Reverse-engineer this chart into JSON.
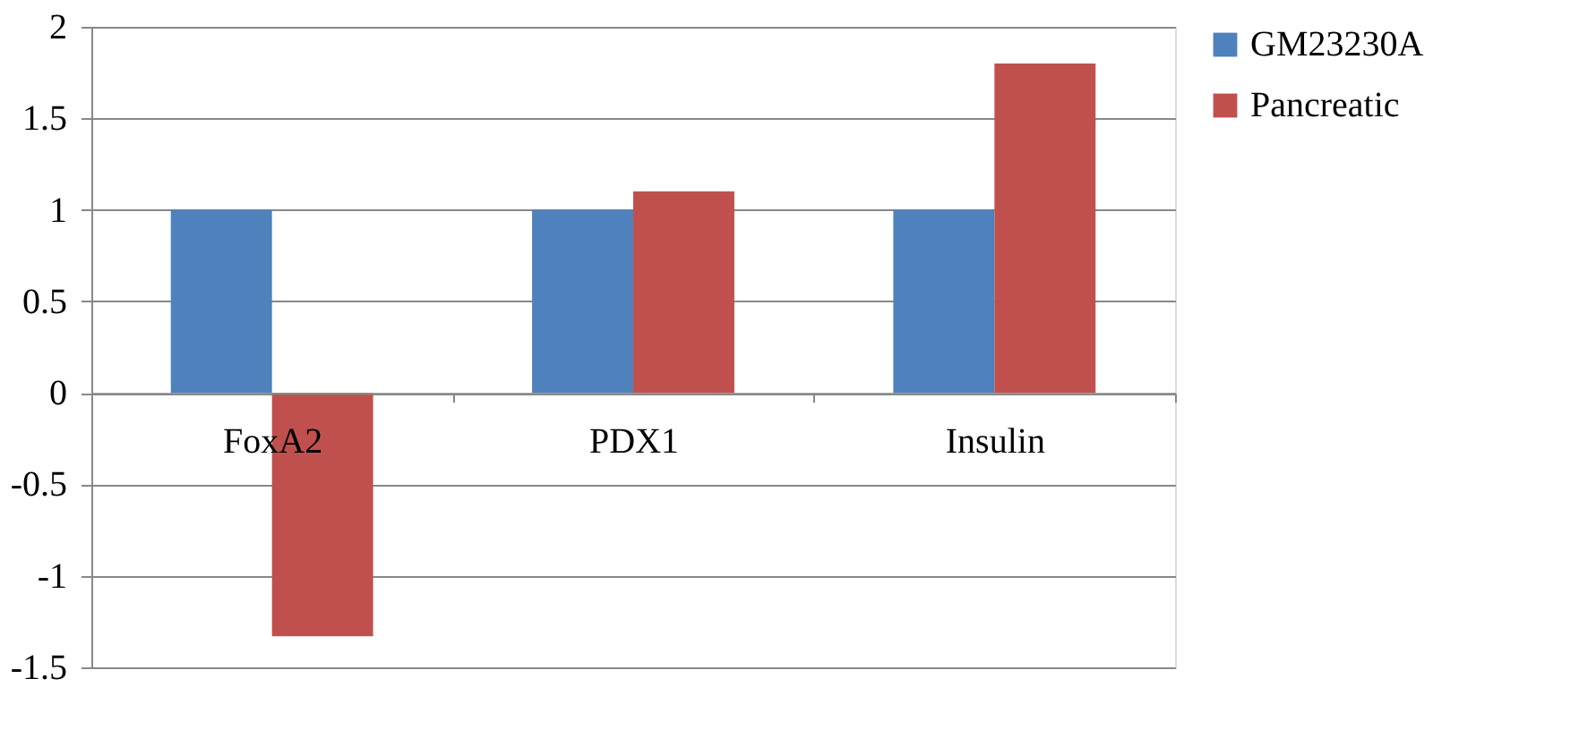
{
  "chart_data": {
    "type": "bar",
    "categories": [
      "FoxA2",
      "PDX1",
      "Insulin"
    ],
    "series": [
      {
        "name": "GM23230A",
        "color": "#4f81bd",
        "values": [
          1,
          1,
          1
        ]
      },
      {
        "name": "Pancreatic",
        "color": "#c0504d",
        "values": [
          -1.33,
          1.1,
          1.8
        ]
      }
    ],
    "ylim": [
      -1.5,
      2
    ],
    "yticks": [
      -1.5,
      -1,
      -0.5,
      0,
      0.5,
      1,
      1.5,
      2
    ],
    "grid": "y",
    "legend": "right"
  }
}
